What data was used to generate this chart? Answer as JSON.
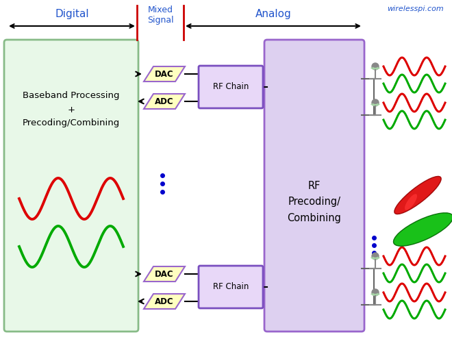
{
  "title_text": "wirelesspi.com",
  "digital_label": "Digital",
  "mixed_label": "Mixed\nSignal",
  "analog_label": "Analog",
  "baseband_label": "Baseband Processing\n+\nPrecoding/Combining",
  "rf_precoding_label": "RF\nPrecoding/\nCombining",
  "dac_label": "DAC",
  "adc_label": "ADC",
  "rf_chain_label": "RF Chain",
  "bg_color": "#ffffff",
  "baseband_fill": "#e8f8e8",
  "baseband_edge": "#88bb88",
  "rf_precoding_fill": "#ddd0f0",
  "rf_precoding_edge": "#9966cc",
  "dac_fill": "#ffffc0",
  "dac_edge": "#9966cc",
  "adc_fill": "#ffffc0",
  "adc_edge": "#9966cc",
  "rf_chain_fill": "#e8d8f8",
  "rf_chain_edge": "#7a4fbf",
  "red_wave_color": "#dd0000",
  "green_wave_color": "#00aa00",
  "arrow_color": "#000000",
  "divider_color": "#cc0000",
  "text_color": "#000000",
  "blue_dot_color": "#0000cc",
  "antenna_gray": "#888888",
  "antenna_arc_color": "#aaddaa",
  "beam_red_fill": "#dd0000",
  "beam_green_fill": "#00bb00",
  "label_color": "#2255cc"
}
